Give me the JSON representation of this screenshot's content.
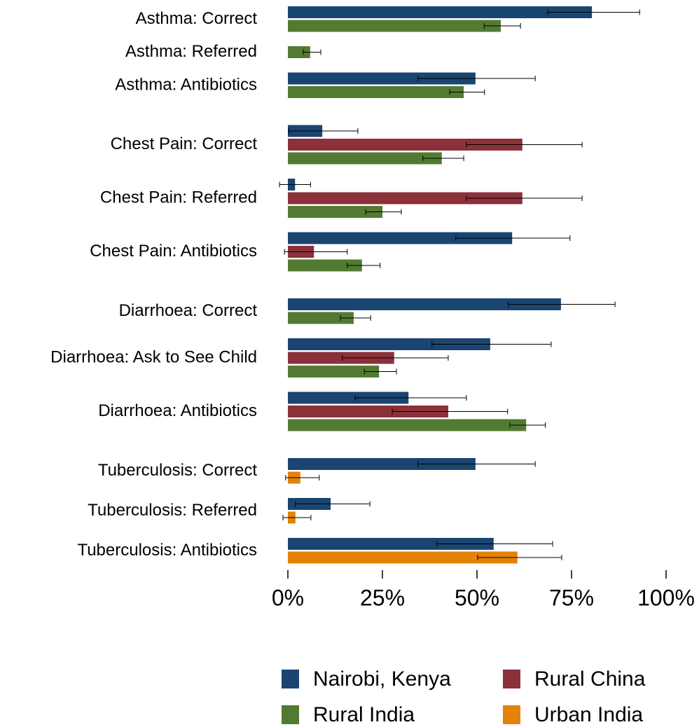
{
  "chart_data": {
    "type": "bar",
    "orientation": "horizontal",
    "categories": [
      "Asthma: Correct",
      "Asthma: Referred",
      "Asthma: Antibiotics",
      "Chest Pain: Correct",
      "Chest Pain: Referred",
      "Chest Pain: Antibiotics",
      "Diarrhoea: Correct",
      "Diarrhoea: Ask to See Child",
      "Diarrhoea: Antibiotics",
      "Tuberculosis: Correct",
      "Tuberculosis: Referred",
      "Tuberculosis: Antibiotics"
    ],
    "series": [
      {
        "name": "Nairobi, Kenya",
        "color": "#1a4571",
        "values": [
          80.4,
          null,
          49.6,
          9.1,
          1.9,
          59.3,
          72.2,
          53.5,
          31.9,
          49.6,
          11.3,
          54.4
        ],
        "ci_low": [
          68.7,
          null,
          34.4,
          0.2,
          -2.2,
          44.4,
          58.3,
          38.1,
          17.8,
          34.4,
          2.0,
          39.3
        ],
        "ci_high": [
          93.0,
          null,
          65.4,
          18.5,
          6.0,
          74.6,
          86.5,
          69.6,
          47.2,
          65.4,
          21.7,
          70.0
        ]
      },
      {
        "name": "Rural China",
        "color": "#8c3039",
        "values": [
          null,
          null,
          null,
          62.0,
          62.0,
          6.9,
          null,
          28.1,
          42.4,
          null,
          null,
          null
        ],
        "ci_low": [
          null,
          null,
          null,
          47.2,
          47.2,
          -0.9,
          null,
          14.4,
          27.6,
          null,
          null,
          null
        ],
        "ci_high": [
          null,
          null,
          null,
          77.8,
          77.8,
          15.7,
          null,
          42.4,
          58.1,
          null,
          null,
          null
        ]
      },
      {
        "name": "Rural India",
        "color": "#537a32",
        "values": [
          56.3,
          5.9,
          46.5,
          40.7,
          25.0,
          19.6,
          17.4,
          24.1,
          63.0,
          null,
          null,
          null
        ],
        "ci_low": [
          51.9,
          4.1,
          42.8,
          35.7,
          20.6,
          15.7,
          13.9,
          20.2,
          58.7,
          null,
          null,
          null
        ],
        "ci_high": [
          61.5,
          8.7,
          52.0,
          46.5,
          30.0,
          24.4,
          21.9,
          28.7,
          68.1,
          null,
          null,
          null
        ]
      },
      {
        "name": "Urban India",
        "color": "#e38209",
        "values": [
          null,
          null,
          null,
          null,
          null,
          null,
          null,
          null,
          null,
          3.3,
          2.0,
          60.7
        ],
        "ci_low": [
          null,
          null,
          null,
          null,
          null,
          null,
          null,
          null,
          null,
          -0.6,
          -1.3,
          50.2
        ],
        "ci_high": [
          null,
          null,
          null,
          null,
          null,
          null,
          null,
          null,
          null,
          8.3,
          6.1,
          72.4
        ]
      }
    ],
    "xlim": [
      0,
      100
    ],
    "xticks": [
      {
        "value": 0,
        "label": "0%"
      },
      {
        "value": 25,
        "label": "25%"
      },
      {
        "value": 50,
        "label": "50%"
      },
      {
        "value": 75,
        "label": "75%"
      },
      {
        "value": 100,
        "label": "100%"
      }
    ],
    "legend": "bottom"
  }
}
